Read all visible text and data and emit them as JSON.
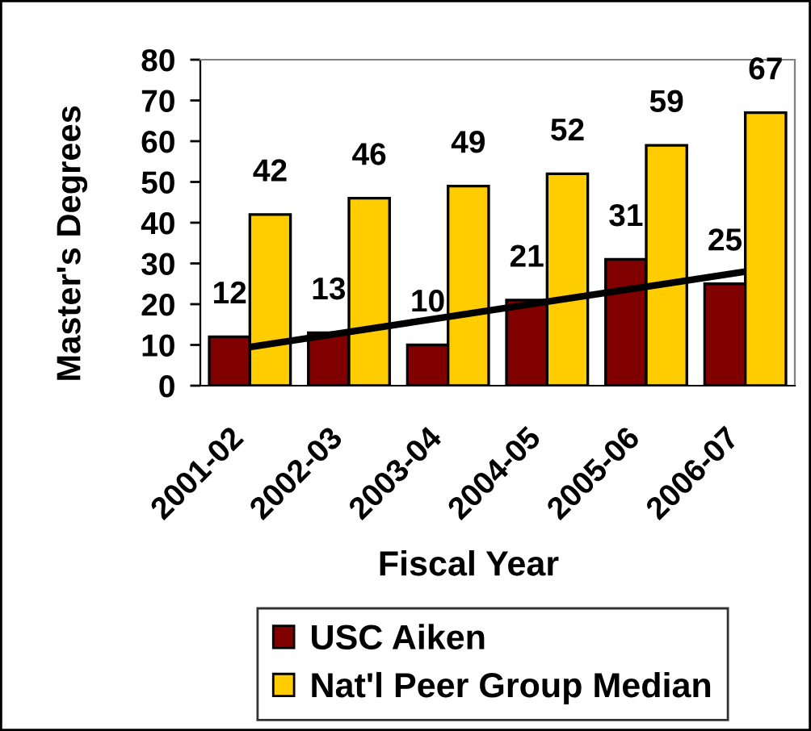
{
  "chart_data": {
    "type": "bar",
    "xlabel": "Fiscal Year",
    "ylabel": "Master's Degrees",
    "categories": [
      "2001-02",
      "2002-03",
      "2003-04",
      "2004-05",
      "2005-06",
      "2006-07"
    ],
    "series": [
      {
        "name": "USC Aiken",
        "color": "#800000",
        "values": [
          12,
          13,
          10,
          21,
          31,
          25
        ],
        "value_labels": [
          "12",
          "13",
          "10",
          "21",
          "31",
          "25"
        ]
      },
      {
        "name": "Nat'l Peer Group Median",
        "color": "#ffcc00",
        "values": [
          42,
          46,
          49,
          52,
          59,
          67
        ],
        "value_labels": [
          "42",
          "46",
          "49",
          "52",
          "59",
          "67"
        ]
      },
      {
        "type": "line",
        "color": "#000000",
        "values": [
          9.5,
          13.2,
          16.9,
          20.6,
          24.3,
          28
        ]
      }
    ],
    "ylim": [
      0,
      80
    ],
    "yticks": [
      0,
      10,
      20,
      30,
      40,
      50,
      60,
      70,
      80
    ],
    "legend": "bottom",
    "grid": false
  }
}
